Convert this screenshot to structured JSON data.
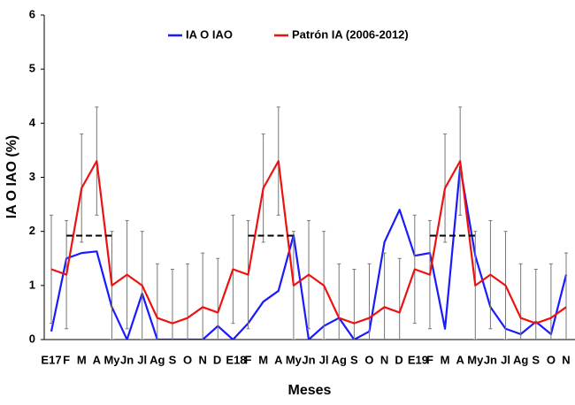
{
  "chart_data": {
    "type": "line",
    "x_label": "Meses",
    "y_label": "IA O IAO (%)",
    "categories": [
      "E17",
      "F",
      "M",
      "A",
      "My",
      "Jn",
      "Jl",
      "Ag",
      "S",
      "O",
      "N",
      "D",
      "E18",
      "F",
      "M",
      "A",
      "My",
      "Jn",
      "Jl",
      "Ag",
      "S",
      "O",
      "N",
      "D",
      "E19",
      "F",
      "M",
      "A",
      "My",
      "Jn",
      "Jl",
      "Ag",
      "S",
      "O",
      "N"
    ],
    "series": [
      {
        "name": "IA O IAO",
        "color": "#1a1aff",
        "values": [
          0.15,
          1.5,
          1.6,
          1.63,
          0.6,
          0,
          0.85,
          0,
          0,
          0,
          0,
          0.25,
          0,
          0.3,
          0.7,
          0.9,
          1.93,
          0,
          0.25,
          0.4,
          0,
          0.15,
          1.8,
          2.4,
          1.55,
          1.6,
          0.2,
          3.2,
          1.55,
          0.6,
          0.2,
          0.1,
          0.33,
          0.1,
          1.2
        ]
      },
      {
        "name": "Patrón IA (2006-2012)",
        "color": "#ee1111",
        "values": [
          1.3,
          1.2,
          2.8,
          3.3,
          1.0,
          1.2,
          1.0,
          0.4,
          0.3,
          0.4,
          0.6,
          0.5,
          1.3,
          1.2,
          2.8,
          3.3,
          1.0,
          1.2,
          1.0,
          0.4,
          0.3,
          0.4,
          0.6,
          0.5,
          1.3,
          1.2,
          2.8,
          3.3,
          1.0,
          1.2,
          1.0,
          0.4,
          0.3,
          0.4,
          0.6
        ],
        "errors": [
          1,
          1,
          1,
          1,
          1,
          1,
          1,
          1,
          1,
          1,
          1,
          1,
          1,
          1,
          1,
          1,
          1,
          1,
          1,
          1,
          1,
          1,
          1,
          1,
          1,
          1,
          1,
          1,
          1,
          1,
          1,
          1,
          1,
          1,
          1
        ]
      },
      {
        "color": "#000000",
        "dash": true,
        "values": [
          null,
          1.92,
          1.92,
          1.92,
          1.92,
          null,
          null,
          null,
          null,
          null,
          null,
          null,
          null,
          1.92,
          1.92,
          1.92,
          1.92,
          null,
          null,
          null,
          null,
          null,
          null,
          null,
          null,
          1.92,
          1.92,
          1.92,
          1.92,
          null,
          null,
          null,
          null,
          null,
          null
        ]
      }
    ],
    "ylim": [
      0,
      6
    ],
    "yticks": [
      0,
      1,
      2,
      3,
      4,
      5,
      6
    ],
    "legend": "top"
  }
}
